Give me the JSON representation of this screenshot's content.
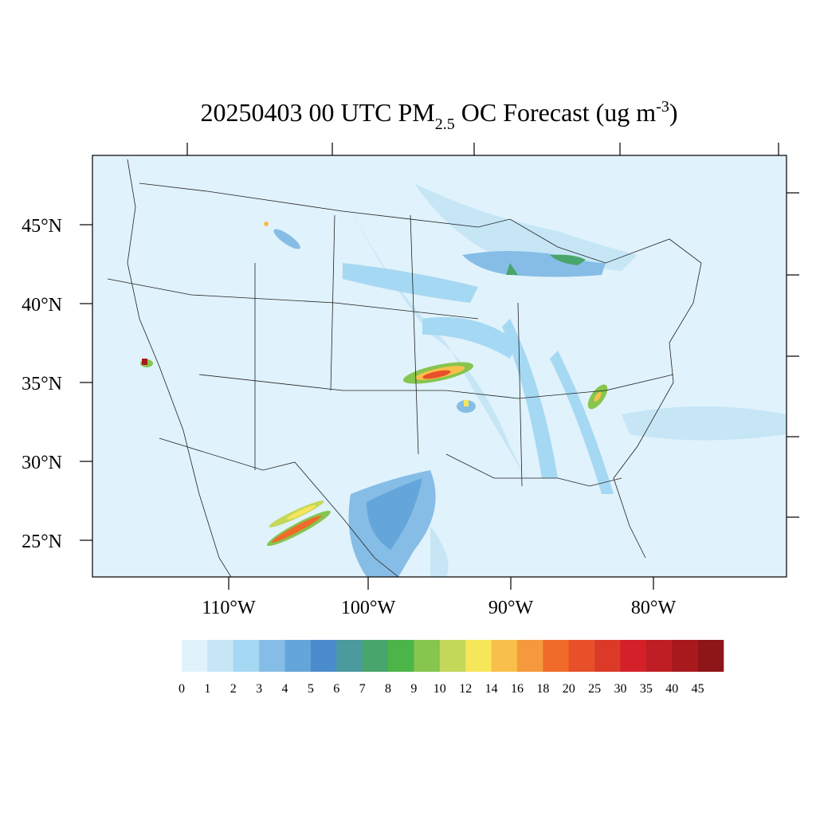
{
  "title": {
    "main": "20250403 00 UTC PM",
    "sub": "2.5",
    "rest": " OC Forecast (ug m",
    "sup": "-3",
    "end": ")"
  },
  "map": {
    "lat_labels": [
      "45°N",
      "40°N",
      "35°N",
      "30°N",
      "25°N"
    ],
    "lon_labels": [
      "110°W",
      "100°W",
      "90°W",
      "80°W"
    ]
  },
  "colorbar": {
    "colors": [
      "#e0f2fb",
      "#c6e6f6",
      "#a5d8f3",
      "#86bde6",
      "#64a6da",
      "#4a8ccb",
      "#4a9a9e",
      "#48a56b",
      "#4cb548",
      "#86c54e",
      "#c4d85a",
      "#f6e65a",
      "#f8bf4a",
      "#f59a3c",
      "#f06a2a",
      "#e8502a",
      "#dc3a28",
      "#d42028",
      "#bf1e24",
      "#a8191e",
      "#8e1518"
    ],
    "labels": [
      "0",
      "1",
      "2",
      "3",
      "4",
      "5",
      "6",
      "7",
      "8",
      "9",
      "10",
      "12",
      "14",
      "16",
      "18",
      "20",
      "25",
      "30",
      "35",
      "40",
      "45"
    ]
  }
}
